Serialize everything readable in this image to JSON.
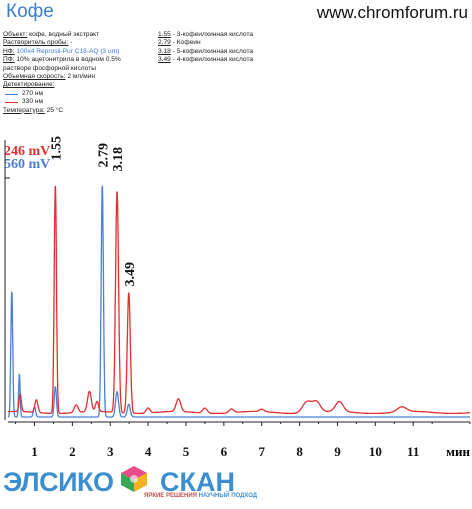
{
  "header": {
    "title": "Кофе",
    "site": "www.chromforum.ru"
  },
  "info": {
    "object_label": "Объект:",
    "object_value": " кофе, водный экстракт",
    "solvent_label": "Растворитель пробы:",
    "solvent_value": " -",
    "column_label": "НФ:",
    "column_value": " 100x4 Reprosil-Pur C18-AQ (3 um)",
    "mobile_label": "ПФ:",
    "mobile_value": " 10% ацетонитрила в водном 0.5%",
    "mobile_value2": "растворе фосфорной кислоты",
    "flow_label": "Объемная скорость:",
    "flow_value": " 2 мл/мин",
    "detect_label": "Детектирование:",
    "legend": [
      {
        "label": "270 нм",
        "color": "#4a7fd4"
      },
      {
        "label": "330 нм",
        "color": "#e03030"
      }
    ],
    "temp_label": "Температура:",
    "temp_value": " 25 °C"
  },
  "peak_list": [
    {
      "time": "1.55",
      "name": " - 3-кофеилхинная кислота"
    },
    {
      "time": "2.79",
      "name": " - Кофеин"
    },
    {
      "time": "3.18",
      "name": " - 5-кофеилхинная кислота"
    },
    {
      "time": "3.49",
      "name": " - 4-кофеилхинная кислота"
    }
  ],
  "chart_data": {
    "type": "line",
    "x_unit": "мин",
    "x_ticks": [
      1,
      2,
      3,
      4,
      5,
      6,
      7,
      8,
      9,
      10,
      11
    ],
    "xlim": [
      0.3,
      12.5
    ],
    "scale_labels": [
      {
        "text": "246 mV",
        "color": "#e03030"
      },
      {
        "text": "560 mV",
        "color": "#4a7fd4"
      }
    ],
    "peak_labels": [
      "1.55",
      "2.79",
      "3.18",
      "3.49"
    ],
    "series": [
      {
        "name": "270 нм",
        "color": "#4a7fd4",
        "baseline": 0.012,
        "peaks": [
          {
            "t": 0.4,
            "h": 0.5,
            "w": 0.025
          },
          {
            "t": 0.6,
            "h": 0.17,
            "w": 0.02
          },
          {
            "t": 1.0,
            "h": 0.04,
            "w": 0.03
          },
          {
            "t": 1.55,
            "h": 0.12,
            "w": 0.03
          },
          {
            "t": 2.79,
            "h": 0.92,
            "w": 0.03
          },
          {
            "t": 3.18,
            "h": 0.1,
            "w": 0.04
          },
          {
            "t": 3.49,
            "h": 0.05,
            "w": 0.04
          }
        ]
      },
      {
        "name": "330 нм",
        "color": "#e03030",
        "baseline": 0.03,
        "peaks": [
          {
            "t": 0.62,
            "h": 0.07,
            "w": 0.03
          },
          {
            "t": 1.05,
            "h": 0.05,
            "w": 0.04
          },
          {
            "t": 1.55,
            "h": 0.91,
            "w": 0.03
          },
          {
            "t": 2.1,
            "h": 0.03,
            "w": 0.05
          },
          {
            "t": 2.45,
            "h": 0.08,
            "w": 0.05
          },
          {
            "t": 2.65,
            "h": 0.04,
            "w": 0.04
          },
          {
            "t": 3.18,
            "h": 0.88,
            "w": 0.04
          },
          {
            "t": 3.49,
            "h": 0.48,
            "w": 0.04
          },
          {
            "t": 4.0,
            "h": 0.02,
            "w": 0.05
          },
          {
            "t": 4.8,
            "h": 0.05,
            "w": 0.06
          },
          {
            "t": 5.5,
            "h": 0.02,
            "w": 0.06
          },
          {
            "t": 6.2,
            "h": 0.015,
            "w": 0.06
          },
          {
            "t": 7.0,
            "h": 0.01,
            "w": 0.06
          },
          {
            "t": 8.2,
            "h": 0.045,
            "w": 0.12
          },
          {
            "t": 8.45,
            "h": 0.04,
            "w": 0.1
          },
          {
            "t": 9.05,
            "h": 0.04,
            "w": 0.1
          },
          {
            "t": 10.7,
            "h": 0.02,
            "w": 0.12
          }
        ]
      }
    ]
  },
  "footer": {
    "logo_left": "ЭЛСИКО",
    "logo_right": "СКАН",
    "slogan_a": "ЯРКИЕ РЕШЕНИЯ",
    "slogan_b": " НАУЧНЫЙ ПОДХОД"
  }
}
